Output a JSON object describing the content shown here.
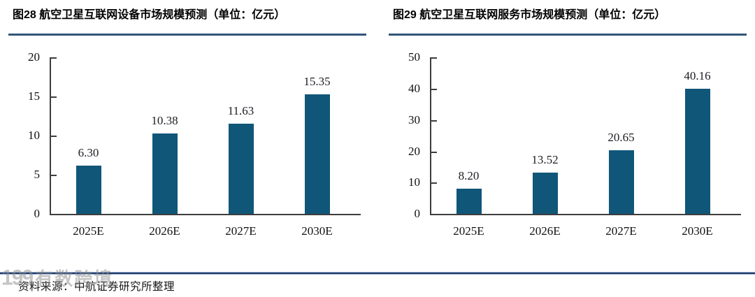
{
  "colors": {
    "bar": "#105679",
    "title_rule": "#335579",
    "bottom_rule_dark": "#203a66",
    "bottom_rule_light": "#9db6da",
    "axis": "#3d3d3d",
    "watermark": "#8c8c8c"
  },
  "chart_data": [
    {
      "type": "bar",
      "title": "图28  航空卫星互联网设备市场规模预测（单位：亿元）",
      "categories": [
        "2025E",
        "2026E",
        "2027E",
        "2030E"
      ],
      "values": [
        6.3,
        10.38,
        11.63,
        15.35
      ],
      "value_labels": [
        "6.30",
        "10.38",
        "11.63",
        "15.35"
      ],
      "xlabel": "",
      "ylabel": "",
      "ylim": [
        0,
        20
      ],
      "yticks": [
        0,
        5,
        10,
        15,
        20
      ],
      "grid": false,
      "legend": "none",
      "bar_color": "#105679"
    },
    {
      "type": "bar",
      "title": "图29  航空卫星互联网服务市场规模预测（单位：亿元）",
      "categories": [
        "2025E",
        "2026E",
        "2027E",
        "2030E"
      ],
      "values": [
        8.2,
        13.52,
        20.65,
        40.16
      ],
      "value_labels": [
        "8.20",
        "13.52",
        "20.65",
        "40.16"
      ],
      "xlabel": "",
      "ylabel": "",
      "ylim": [
        0,
        50
      ],
      "yticks": [
        0,
        10,
        20,
        30,
        40,
        50
      ],
      "grid": false,
      "legend": "none",
      "bar_color": "#105679"
    }
  ],
  "source": {
    "label": "资料来源：中航证券研究所整理"
  },
  "watermark": {
    "logo": "199",
    "text": "有数跨境"
  }
}
